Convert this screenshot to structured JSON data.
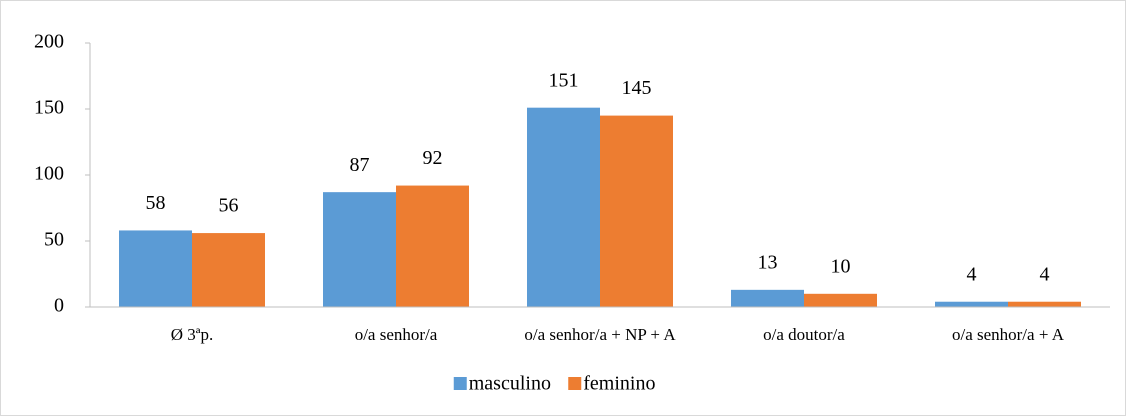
{
  "chart_data": {
    "type": "bar",
    "categories": [
      "Ø 3ªp.",
      "o/a senhor/a",
      "o/a senhor/a + NP + A",
      "o/a doutor/a",
      "o/a senhor/a + A"
    ],
    "series": [
      {
        "name": "masculino",
        "color": "#5b9bd5",
        "values": [
          58,
          87,
          151,
          13,
          4
        ]
      },
      {
        "name": "feminino",
        "color": "#ed7d31",
        "values": [
          56,
          92,
          145,
          10,
          4
        ]
      }
    ],
    "ylim": [
      0,
      200
    ],
    "yticks": [
      0,
      50,
      100,
      150,
      200
    ],
    "grid": false,
    "legend": "bottom"
  }
}
